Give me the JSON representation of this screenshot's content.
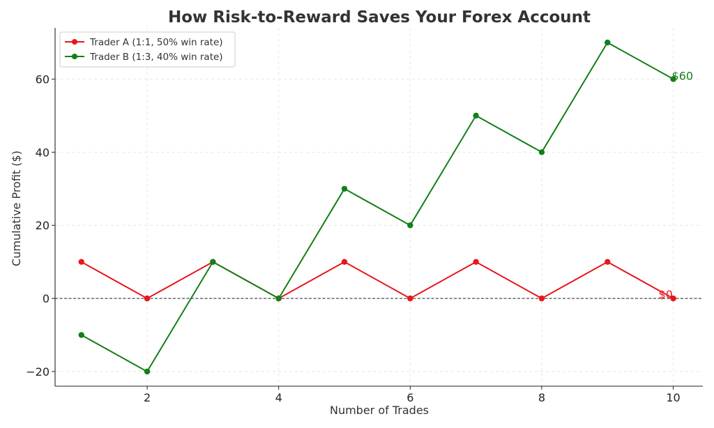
{
  "chart_data": {
    "type": "line",
    "title": "How Risk-to-Reward Saves Your Forex Account",
    "xlabel": "Number of Trades",
    "ylabel": "Cumulative Profit ($)",
    "x": [
      1,
      2,
      3,
      4,
      5,
      6,
      7,
      8,
      9,
      10
    ],
    "xlim": [
      0.6,
      10.45
    ],
    "ylim": [
      -24,
      74
    ],
    "xticks": [
      2,
      4,
      6,
      8,
      10
    ],
    "yticks": [
      -20,
      0,
      20,
      40,
      60
    ],
    "ytick_labels": [
      "−20",
      "0",
      "20",
      "40",
      "60"
    ],
    "grid": true,
    "reference_line_y": 0,
    "legend_position": "top-left",
    "series": [
      {
        "name": "Trader A (1:1, 50% win rate)",
        "color": "#e8161b",
        "values": [
          10,
          0,
          10,
          0,
          10,
          0,
          10,
          0,
          10,
          0
        ],
        "end_label": "$0"
      },
      {
        "name": "Trader B (1:3, 40% win rate)",
        "color": "#137f17",
        "values": [
          -10,
          -20,
          10,
          0,
          30,
          20,
          50,
          40,
          70,
          60
        ],
        "end_label": "$60"
      }
    ]
  }
}
